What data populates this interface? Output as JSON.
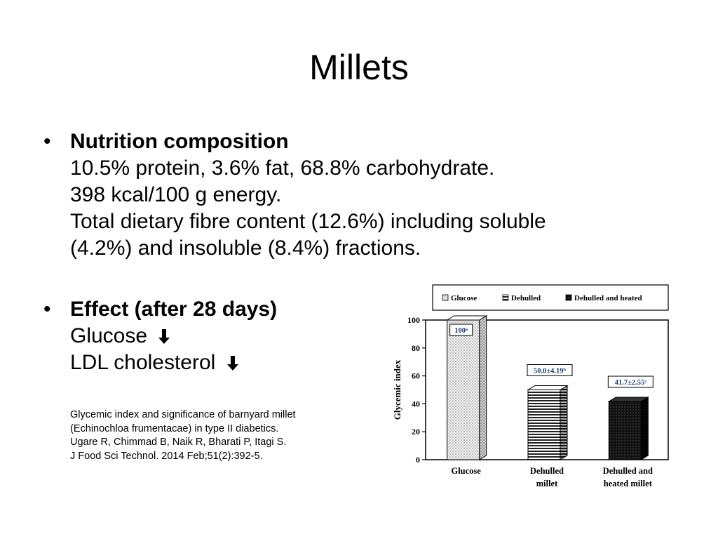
{
  "slide": {
    "title": "Millets",
    "bullet1": {
      "heading": "Nutrition composition",
      "lines": [
        "10.5% protein, 3.6% fat, 68.8% carbohydrate.",
        "398 kcal/100 g energy.",
        "Total dietary fibre content (12.6%) including soluble",
        "(4.2%) and insoluble (8.4%) fractions."
      ]
    },
    "bullet2": {
      "heading": "Effect (after 28 days)",
      "items": [
        "Glucose",
        "LDL cholesterol"
      ],
      "arrow_icon": "arrow-down-icon"
    },
    "citation": [
      "Glycemic index and significance of barnyard millet",
      "(Echinochloa frumentacae) in type II diabetics.",
      "Ugare R, Chimmad B, Naik R, Bharati P, Itagi S.",
      "J Food Sci Technol. 2014 Feb;51(2):392-5."
    ]
  },
  "chart_data": {
    "type": "bar",
    "categories": [
      [
        "Glucose"
      ],
      [
        "Dehulled",
        "millet"
      ],
      [
        "Dehulled and",
        "heated millet"
      ]
    ],
    "series": [
      {
        "name": "Glucose",
        "values": [
          100,
          null,
          null
        ],
        "pattern": "dots"
      },
      {
        "name": "Dehulled",
        "values": [
          null,
          50.0,
          null
        ],
        "pattern": "stripes"
      },
      {
        "name": "Dehulled and heated",
        "values": [
          null,
          null,
          41.7
        ],
        "pattern": "solid-dark"
      }
    ],
    "data_labels": [
      "100ᵃ",
      "50.0±4.19ᵇ",
      "41.7±2.55ᶜ"
    ],
    "ylabel": "Glycemic index",
    "ylim": [
      0,
      100
    ],
    "yticks": [
      0,
      20,
      40,
      60,
      80,
      100
    ],
    "legend": "top",
    "grid": false
  }
}
